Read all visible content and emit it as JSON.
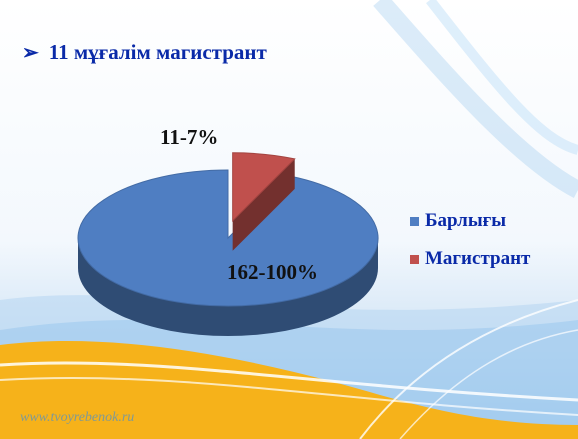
{
  "header": {
    "title": "11 мұғалім магистрант",
    "bullet_icon": "arrow-bullet-icon"
  },
  "watermark": "www.tvoyrebenok.ru",
  "colors": {
    "title": "#0a2aa8",
    "series_total": "#4f7ec2",
    "series_master": "#c0504d"
  },
  "chart_data": {
    "type": "pie",
    "title": "11 мұғалім магистрант",
    "slices": [
      {
        "name": "Барлығы",
        "value": 162,
        "percent": 100,
        "label": "162-100%",
        "color": "#4f7ec2"
      },
      {
        "name": "Магистрант",
        "value": 11,
        "percent": 7,
        "label": "11-7%",
        "color": "#c0504d",
        "exploded": true
      }
    ],
    "legend": {
      "position": "right",
      "entries": [
        "Барлығы",
        "Магистрант"
      ]
    },
    "style": "3d-tilted"
  }
}
